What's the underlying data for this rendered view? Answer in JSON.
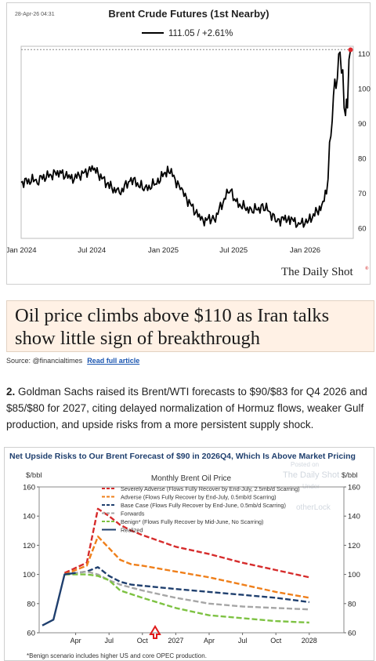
{
  "chart1": {
    "timestamp": "28-Apr-26 04:31",
    "title": "Brent Crude Futures (1st Nearby)",
    "legend_value": "111.05 / +2.61%",
    "brand": "The Daily Shot",
    "brand_mark": "®",
    "colors": {
      "line": "#000000",
      "endpoint": "#e0282e",
      "refline": "#888888"
    }
  },
  "chart_data": [
    {
      "type": "line",
      "title": "Brent Crude Futures (1st Nearby)",
      "series": [
        {
          "name": "111.05 / +2.61%",
          "x": [
            "2024-01-01",
            "2024-02-15",
            "2024-04-10",
            "2024-05-10",
            "2024-07-05",
            "2024-08-15",
            "2024-09-10",
            "2024-10-10",
            "2024-11-15",
            "2024-12-15",
            "2025-01-15",
            "2025-02-20",
            "2025-04-10",
            "2025-05-15",
            "2025-06-20",
            "2025-07-10",
            "2025-08-15",
            "2025-09-20",
            "2025-10-20",
            "2025-11-20",
            "2025-12-15",
            "2026-01-10",
            "2026-02-10",
            "2026-02-25",
            "2026-03-05",
            "2026-03-15",
            "2026-03-25",
            "2026-04-01",
            "2026-04-08",
            "2026-04-15",
            "2026-04-20",
            "2026-04-28"
          ],
          "values": [
            73,
            74,
            76,
            74,
            77,
            72,
            70,
            74,
            71,
            73,
            77,
            70,
            62,
            63,
            71,
            67,
            65,
            66,
            62,
            63,
            61,
            62,
            66,
            70,
            80,
            98,
            108,
            109,
            101,
            94,
            97,
            111
          ]
        }
      ],
      "ylim": [
        57,
        112
      ],
      "yticks": [
        60,
        70,
        80,
        90,
        100,
        110
      ],
      "xticks": [
        "Jan 2024",
        "Jul 2024",
        "Jan 2025",
        "Jul 2025",
        "Jan 2026"
      ],
      "reference_line": 111.05
    },
    {
      "type": "line",
      "title": "Net Upside Risks to Our Brent Forecast of $90 in 2026Q4, Which Is Above Market Pricing",
      "subtitle": "Monthly Brent Oil Price",
      "ylabel_left": "$/bbl",
      "ylabel_right": "$/bbl",
      "ylim": [
        60,
        160
      ],
      "yticks": [
        60,
        80,
        100,
        120,
        140,
        160
      ],
      "xticks": [
        "Apr",
        "Jul",
        "Oct",
        "2027",
        "Apr",
        "Jul",
        "Oct",
        "2028"
      ],
      "series": [
        {
          "name": "Severely Adverse (Flows Fully Recover by End-July, 2.5mb/d Scarring)",
          "color": "#d62c2c",
          "dash": true,
          "x": [
            2,
            4,
            5,
            6,
            7,
            8,
            9,
            12,
            15,
            18,
            21,
            24
          ],
          "values": [
            101,
            108,
            145,
            140,
            134,
            130,
            127,
            119,
            114,
            108,
            103,
            98
          ]
        },
        {
          "name": "Adverse (Flows Fully Recover by End-July, 0.5mb/d Scarring)",
          "color": "#ef7f1a",
          "dash": true,
          "x": [
            2,
            4,
            5,
            6,
            7,
            8,
            9,
            12,
            15,
            18,
            21,
            24
          ],
          "values": [
            100,
            106,
            126,
            118,
            110,
            107,
            106,
            102,
            98,
            93,
            88,
            84
          ]
        },
        {
          "name": "Base Case (Flows Fully Recover by End-June, 0.5mb/d Scarring)",
          "color": "#1f3f6e",
          "dash": true,
          "x": [
            2,
            4,
            5,
            6,
            7,
            8,
            12,
            15,
            18,
            21,
            24
          ],
          "values": [
            100,
            102,
            105,
            99,
            95,
            93,
            90,
            88,
            86,
            84,
            81
          ]
        },
        {
          "name": "Forwards",
          "color": "#a6a6a6",
          "dash": true,
          "x": [
            2,
            4,
            5,
            6,
            7,
            9,
            12,
            15,
            18,
            21,
            24
          ],
          "values": [
            100,
            102,
            100,
            96,
            93,
            89,
            84,
            80,
            78,
            77,
            76
          ]
        },
        {
          "name": "Benign* (Flows Fully Recover by Mid-June, No Scarring)",
          "color": "#7dc242",
          "dash": true,
          "x": [
            2,
            4,
            5,
            6,
            7,
            9,
            12,
            15,
            18,
            21,
            24
          ],
          "values": [
            100,
            100,
            99,
            96,
            89,
            84,
            77,
            72,
            70,
            68,
            67
          ]
        },
        {
          "name": "Realized",
          "color": "#1f3f6e",
          "dash": false,
          "x": [
            0,
            1,
            2,
            3
          ],
          "values": [
            65,
            69,
            100,
            101
          ]
        }
      ],
      "annotation": "red arrow marker pointing up at Oct 2026",
      "footnote": "*Benign scenario includes higher US and core OPEC production.",
      "watermark": [
        "Posted on",
        "The Daily Shot",
        "Under",
        "otherLock"
      ]
    }
  ],
  "headline": {
    "text": "Oil price climbs above $110 as Iran talks show little sign of breakthrough"
  },
  "source": {
    "label": "Source: @financialtimes",
    "link": "Read full article"
  },
  "paragraph": {
    "number": "2.",
    "text": "Goldman Sachs raised its Brent/WTI forecasts to $90/$83 for Q4 2026 and $85/$80 for 2027, citing delayed normalization of Hormuz flows, weaker Gulf production, and upside risks from a more persistent supply shock."
  }
}
